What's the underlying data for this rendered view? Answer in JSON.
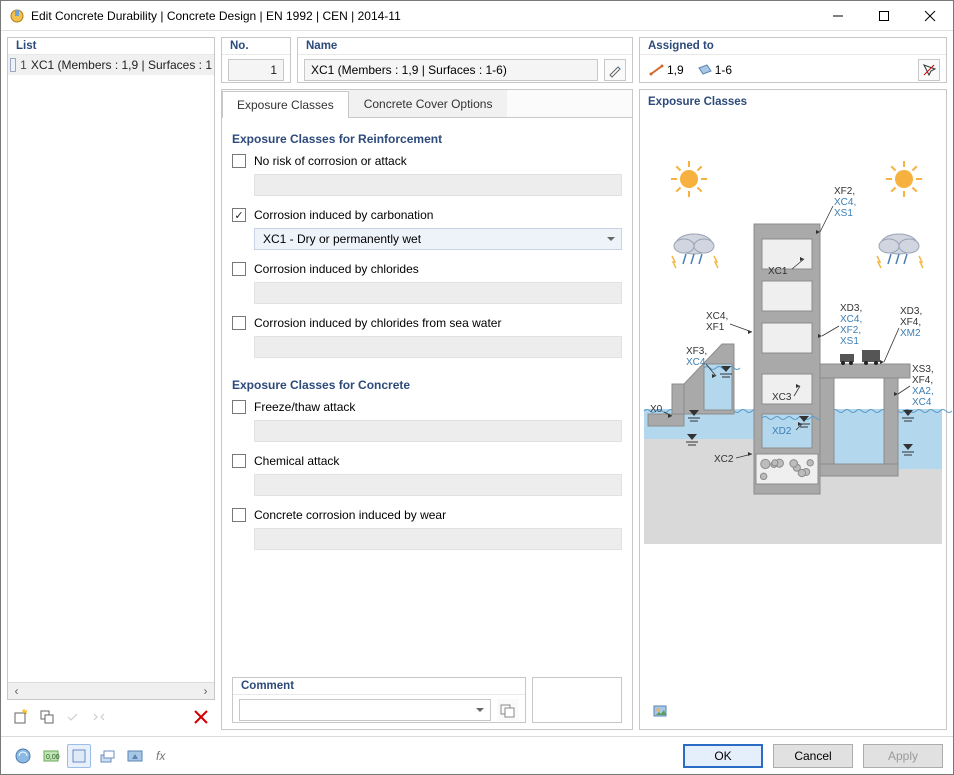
{
  "window": {
    "title": "Edit Concrete Durability | Concrete Design | EN 1992 | CEN | 2014-11"
  },
  "list": {
    "header": "List",
    "items": [
      {
        "num": "1",
        "label": "XC1 (Members : 1,9 | Surfaces : 1",
        "selected": true
      }
    ]
  },
  "no_field": {
    "header": "No.",
    "value": "1"
  },
  "name_field": {
    "header": "Name",
    "value": "XC1 (Members : 1,9 | Surfaces : 1-6)"
  },
  "assigned": {
    "header": "Assigned to",
    "members": "1,9",
    "surfaces": "1-6"
  },
  "tabs": {
    "t0": "Exposure Classes",
    "t1": "Concrete Cover Options"
  },
  "reinf": {
    "header": "Exposure Classes for Reinforcement",
    "c0": "No risk of corrosion or attack",
    "c1": "Corrosion induced by carbonation",
    "c1_sel": "XC1 - Dry or permanently wet",
    "c2": "Corrosion induced by chlorides",
    "c3": "Corrosion induced by chlorides from sea water"
  },
  "conc": {
    "header": "Exposure Classes for Concrete",
    "c0": "Freeze/thaw attack",
    "c1": "Chemical attack",
    "c2": "Concrete corrosion induced by wear"
  },
  "comment": {
    "header": "Comment"
  },
  "diagram": {
    "header": "Exposure Classes",
    "labels": {
      "xf2": "XF2,",
      "xc4a": "XC4,",
      "xs1a": "XS1",
      "xc1": "XC1",
      "xc4top": "XC4,",
      "xf1": "XF1",
      "xf3": "XF3,",
      "xc4b": "XC4",
      "xd3a": "XD3,",
      "xc4c": "XC4,",
      "xf2b": "XF2,",
      "xs1b": "XS1",
      "xd3b": "XD3,",
      "xf4": "XF4,",
      "xm2": "XM2",
      "xs3": "XS3,",
      "xf4b": "XF4,",
      "xa2": "XA2,",
      "xc4d": "XC4",
      "x0": "X0",
      "xc3": "XC3",
      "xd2": "XD2",
      "xc2": "XC2"
    },
    "colors": {
      "sky": "#ffffff",
      "water": "#b3d7ed",
      "ground": "#d9d9d9",
      "concrete": "#a9a9a9",
      "concrete_d": "#8c8c8c",
      "sun": "#f6b13f",
      "cloud": "#d0d5e0",
      "rain": "#4b7fb6",
      "lightning": "#f4b942"
    }
  },
  "buttons": {
    "ok": "OK",
    "cancel": "Cancel",
    "apply": "Apply"
  }
}
